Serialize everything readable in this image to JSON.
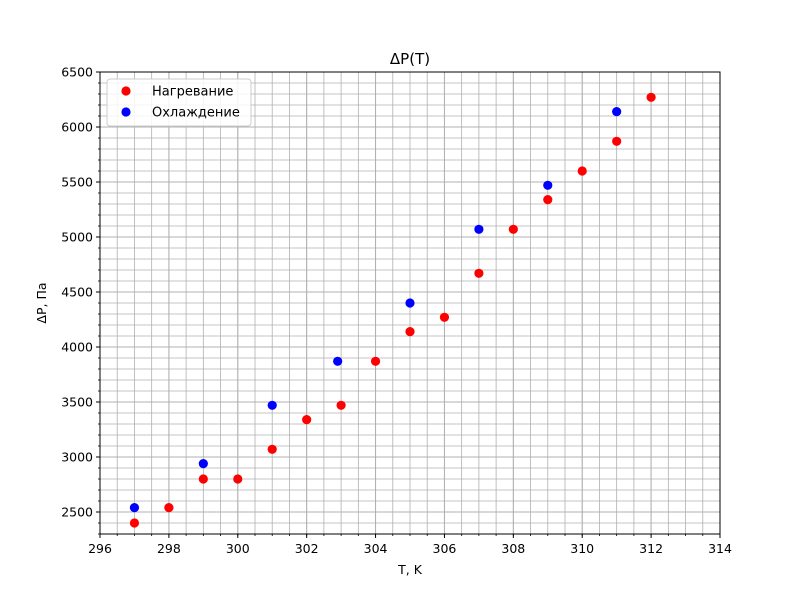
{
  "chart_data": {
    "type": "scatter",
    "title": "ΔP(T)",
    "xlabel": "T, K",
    "ylabel": "ΔP, Па",
    "xlim": [
      296,
      314
    ],
    "ylim": [
      2300,
      6500
    ],
    "xticks": [
      296,
      298,
      300,
      302,
      304,
      306,
      308,
      310,
      312,
      314
    ],
    "yticks": [
      2500,
      3000,
      3500,
      4000,
      4500,
      5000,
      5500,
      6000,
      6500
    ],
    "grid": true,
    "minor_grid": true,
    "legend_position": "upper-left",
    "series": [
      {
        "name": "Нагревание",
        "color": "#ff0000",
        "points": [
          [
            297.0,
            2400
          ],
          [
            298.0,
            2540
          ],
          [
            299.0,
            2800
          ],
          [
            300.0,
            2800
          ],
          [
            301.0,
            3070
          ],
          [
            302.0,
            3340
          ],
          [
            303.0,
            3470
          ],
          [
            304.0,
            3870
          ],
          [
            305.0,
            4140
          ],
          [
            306.0,
            4270
          ],
          [
            307.0,
            4670
          ],
          [
            308.0,
            5070
          ],
          [
            309.0,
            5340
          ],
          [
            310.0,
            5600
          ],
          [
            311.0,
            5870
          ],
          [
            312.0,
            6270
          ]
        ]
      },
      {
        "name": "Охлаждение",
        "color": "#0000ff",
        "points": [
          [
            297.0,
            2540
          ],
          [
            299.0,
            2940
          ],
          [
            301.0,
            3470
          ],
          [
            302.9,
            3870
          ],
          [
            305.0,
            4400
          ],
          [
            307.0,
            5070
          ],
          [
            309.0,
            5470
          ],
          [
            311.0,
            6140
          ]
        ]
      }
    ]
  }
}
